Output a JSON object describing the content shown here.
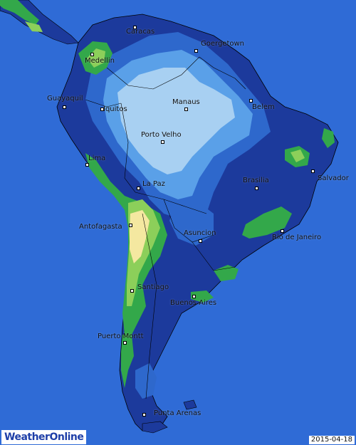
{
  "map": {
    "colors": {
      "ocean": "#2f6bd6",
      "land_base": "#1c3a9c",
      "band_mid": "#2e68cc",
      "band_light": "#5aa0e8",
      "band_pale": "#a8d0f2",
      "band_green": "#33a84a",
      "band_lightgreen": "#8ccf5a",
      "band_yellow": "#f4e8a0",
      "border": "#000000"
    },
    "cities": [
      {
        "id": "caracas",
        "name": "Caracas"
      },
      {
        "id": "georgetown",
        "name": "Goergetown"
      },
      {
        "id": "medellin",
        "name": "Medellin"
      },
      {
        "id": "guayaquil",
        "name": "Guayaquil"
      },
      {
        "id": "iquitos",
        "name": "Iquitos"
      },
      {
        "id": "manaus",
        "name": "Manaus"
      },
      {
        "id": "belem",
        "name": "Belem"
      },
      {
        "id": "porto-velho",
        "name": "Porto Velho"
      },
      {
        "id": "lima",
        "name": "Lima"
      },
      {
        "id": "la-paz",
        "name": "La Paz"
      },
      {
        "id": "brasilia",
        "name": "Brasilia"
      },
      {
        "id": "salvador",
        "name": "Salvador"
      },
      {
        "id": "antofagasta",
        "name": "Antofagasta"
      },
      {
        "id": "asuncion",
        "name": "Asuncion"
      },
      {
        "id": "rio-de-janeiro",
        "name": "Rio de Janeiro"
      },
      {
        "id": "santiago",
        "name": "Santiago"
      },
      {
        "id": "buenos-aires",
        "name": "Buenos Aires"
      },
      {
        "id": "puerto-montt",
        "name": "Puerto Montt"
      },
      {
        "id": "punta-arenas",
        "name": "Punta Arenas"
      }
    ]
  },
  "footer": {
    "brand": "WeatherOnline",
    "date": "2015-04-18"
  }
}
